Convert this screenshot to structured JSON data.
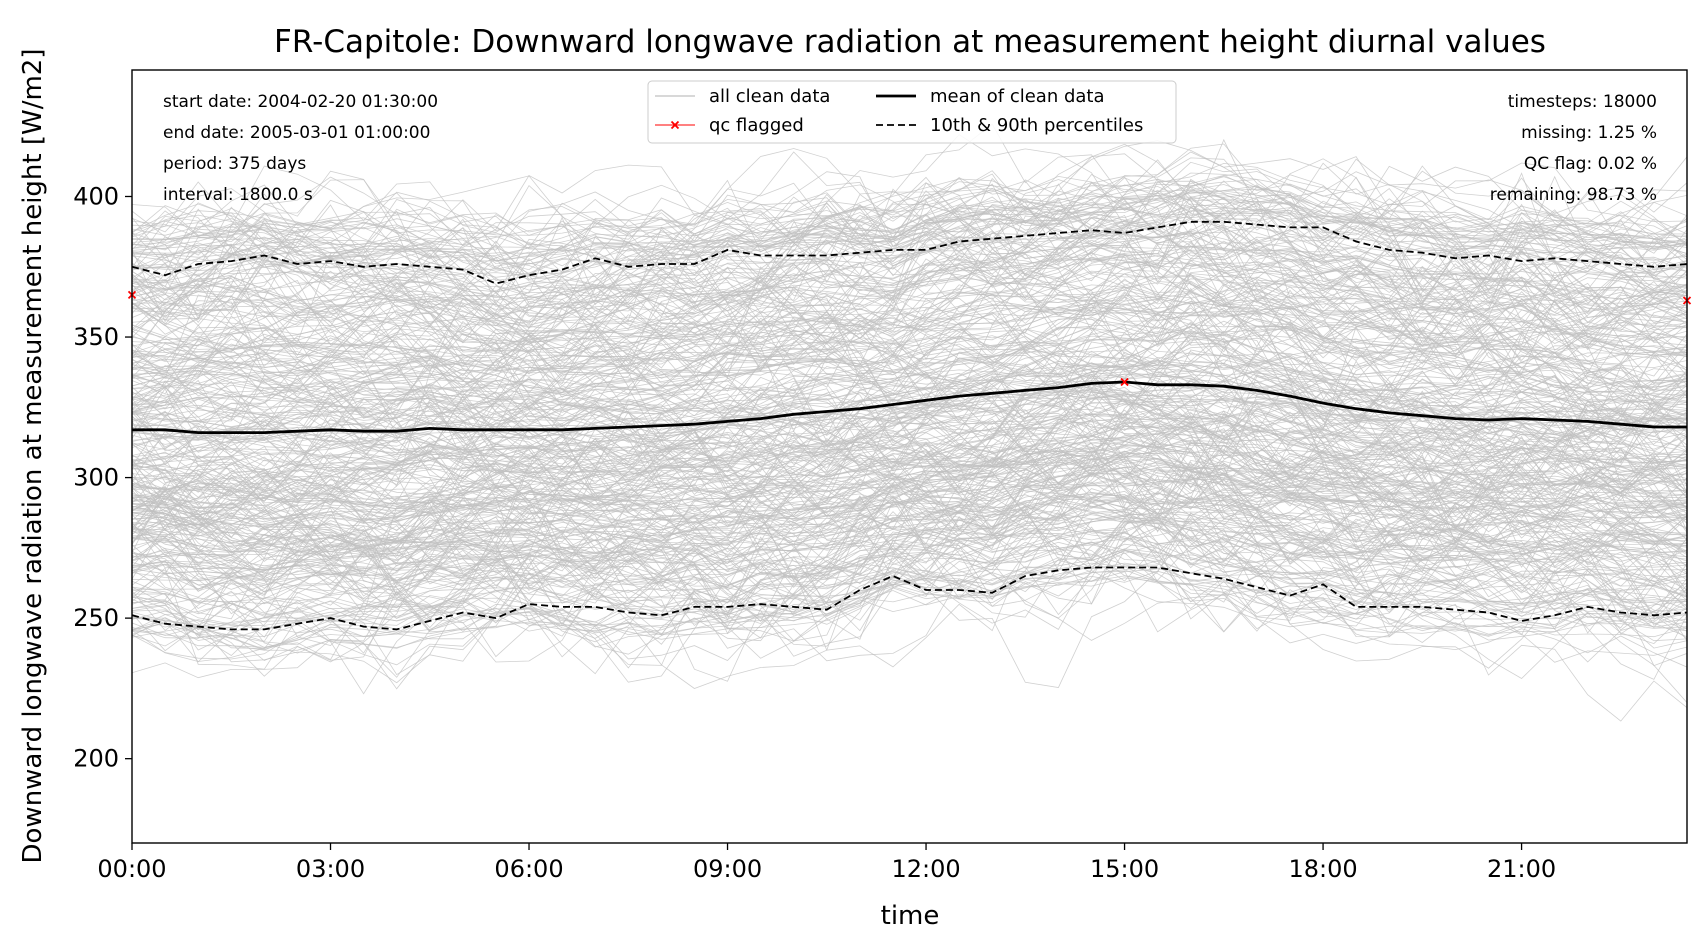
{
  "chart_data": {
    "type": "line",
    "title": "FR-Capitole: Downward longwave radiation at measurement height diurnal values",
    "xlabel": "time",
    "ylabel": "Downward longwave radiation at measurement height [W/m2]",
    "xlim_hours": [
      0,
      23.5
    ],
    "ylim": [
      170,
      445
    ],
    "x_ticks": [
      {
        "h": 0,
        "label": "00:00"
      },
      {
        "h": 3,
        "label": "03:00"
      },
      {
        "h": 6,
        "label": "06:00"
      },
      {
        "h": 9,
        "label": "09:00"
      },
      {
        "h": 12,
        "label": "12:00"
      },
      {
        "h": 15,
        "label": "15:00"
      },
      {
        "h": 18,
        "label": "18:00"
      },
      {
        "h": 21,
        "label": "21:00"
      }
    ],
    "y_ticks": [
      200,
      250,
      300,
      350,
      400
    ],
    "x_hours": [
      0,
      0.5,
      1,
      1.5,
      2,
      2.5,
      3,
      3.5,
      4,
      4.5,
      5,
      5.5,
      6,
      6.5,
      7,
      7.5,
      8,
      8.5,
      9,
      9.5,
      10,
      10.5,
      11,
      11.5,
      12,
      12.5,
      13,
      13.5,
      14,
      14.5,
      15,
      15.5,
      16,
      16.5,
      17,
      17.5,
      18,
      18.5,
      19,
      19.5,
      20,
      20.5,
      21,
      21.5,
      22,
      22.5,
      23,
      23.5
    ],
    "series": [
      {
        "name": "mean of clean data",
        "style": "solid",
        "color": "#000000",
        "values": [
          317,
          317,
          316,
          316,
          316,
          316.5,
          317,
          316.5,
          316.5,
          317.5,
          317,
          317,
          317,
          317,
          317.5,
          318,
          318.5,
          319,
          320,
          321,
          322.5,
          323.5,
          324.5,
          326,
          327.5,
          329,
          330,
          331,
          332,
          333.5,
          334,
          333,
          333,
          332.5,
          331,
          329,
          326.5,
          324.5,
          323,
          322,
          321,
          320.5,
          321,
          320.5,
          320,
          319,
          318,
          318
        ]
      },
      {
        "name": "10th & 90th percentiles",
        "style": "dashed",
        "color": "#000000",
        "values": [
          375,
          372,
          376,
          377,
          379,
          376,
          377,
          375,
          376,
          375,
          374,
          369,
          372,
          374,
          378,
          375,
          376,
          376,
          381,
          379,
          379,
          379,
          380,
          381,
          381,
          384,
          385,
          386,
          387,
          388,
          387,
          389,
          391,
          391,
          390,
          389,
          389,
          384,
          381,
          380,
          378,
          379,
          377,
          378,
          377,
          376,
          375,
          376
        ]
      },
      {
        "name": "",
        "style": "dashed",
        "color": "#000000",
        "values": [
          251,
          248,
          247,
          246,
          246,
          248,
          250,
          247,
          246,
          249,
          252,
          250,
          255,
          254,
          254,
          252,
          251,
          254,
          254,
          255,
          254,
          253,
          260,
          265,
          260,
          260,
          259,
          265,
          267,
          268,
          268,
          268,
          266,
          264,
          261,
          258,
          262,
          254,
          254,
          254,
          253,
          252,
          249,
          251,
          254,
          252,
          251,
          252
        ]
      }
    ],
    "qc_flagged": [
      {
        "h": 0,
        "v": 365
      },
      {
        "h": 15,
        "v": 334
      },
      {
        "h": 23.5,
        "v": 363
      }
    ],
    "legend": {
      "position": "top-center",
      "entries": [
        {
          "label": "all clean data",
          "style": "thin-gray"
        },
        {
          "label": "qc flagged",
          "style": "red-x"
        },
        {
          "label": "mean of clean data",
          "style": "solid"
        },
        {
          "label": "10th & 90th percentiles",
          "style": "dashed"
        }
      ]
    },
    "info_left": [
      "start date: 2004-02-20 01:30:00",
      "end date: 2005-03-01 01:00:00",
      "period: 375 days",
      "interval: 1800.0 s"
    ],
    "info_right": [
      "timesteps: 18000",
      "missing: 1.25 %",
      "QC flag: 0.02 %",
      "remaining: 98.73 %"
    ],
    "colors": {
      "clean_data": "#c0c0c0",
      "qc_flagged": "#ff0000",
      "stats": "#000000"
    }
  }
}
